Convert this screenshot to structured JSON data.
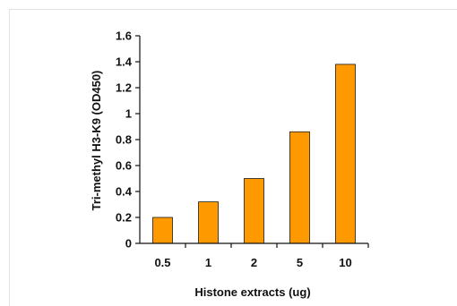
{
  "chart_data": {
    "type": "bar",
    "title": "",
    "xlabel": "Histone extracts (ug)",
    "ylabel": "Tri-methyl H3-K9 (OD450)",
    "categories": [
      "0.5",
      "1",
      "2",
      "5",
      "10"
    ],
    "values": [
      0.2,
      0.32,
      0.5,
      0.86,
      1.38
    ],
    "ylim": [
      0,
      1.6
    ],
    "yticks": [
      "0",
      "0.2",
      "0.4",
      "0.6",
      "0.8",
      "1",
      "1.2",
      "1.4",
      "1.6"
    ],
    "grid": false,
    "legend": "none",
    "bar_color": "#ff9900",
    "bar_edge_color": "#1a1a1a"
  }
}
